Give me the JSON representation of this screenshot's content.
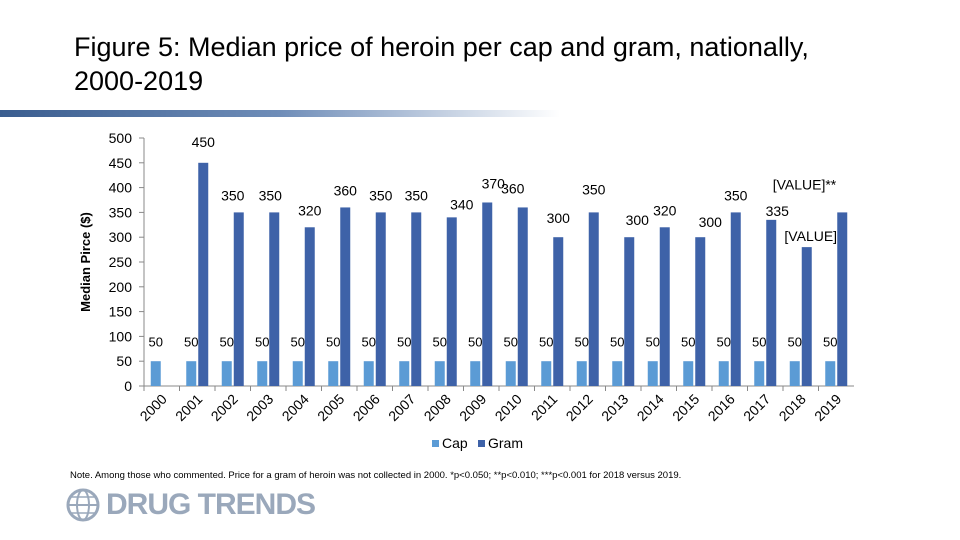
{
  "title": "Figure 5: Median price of heroin per cap and gram, nationally, 2000-2019",
  "note": "Note. Among those who commented. Price for a gram of heroin was not collected in 2000. *p<0.050; **p<0.010; ***p<0.001 for 2018 versus 2019.",
  "logo": {
    "text": "DRUG TRENDS",
    "icon": "globe-icon"
  },
  "colors": {
    "cap": "#5b9bd5",
    "gram": "#3e62a8",
    "rule": "#3a5d8f",
    "logo": "#9aa8bb"
  },
  "chart_data": {
    "type": "bar",
    "ylabel": "Median Pirce ($)",
    "ylim": [
      0,
      500
    ],
    "yticks": [
      "0",
      "50",
      "100",
      "150",
      "200",
      "250",
      "300",
      "350",
      "400",
      "450",
      "500"
    ],
    "categories": [
      "2000",
      "2001",
      "2002",
      "2003",
      "2004",
      "2005",
      "2006",
      "2007",
      "2008",
      "2009",
      "2010",
      "2011",
      "2012",
      "2013",
      "2014",
      "2015",
      "2016",
      "2017",
      "2018",
      "2019"
    ],
    "legend_position": "bottom",
    "grid": false,
    "series": [
      {
        "name": "Cap",
        "values": [
          50,
          50,
          50,
          50,
          50,
          50,
          50,
          50,
          50,
          50,
          50,
          50,
          50,
          50,
          50,
          50,
          50,
          50,
          50,
          50
        ],
        "labels": [
          "50",
          "50",
          "50",
          "50",
          "50",
          "50",
          "50",
          "50",
          "50",
          "50",
          "50",
          "50",
          "50",
          "50",
          "50",
          "50",
          "50",
          "50",
          "50",
          "50"
        ]
      },
      {
        "name": "Gram",
        "values": [
          null,
          450,
          350,
          350,
          320,
          360,
          350,
          350,
          340,
          370,
          360,
          300,
          350,
          300,
          320,
          300,
          350,
          335,
          280,
          350
        ],
        "labels": [
          "",
          "450",
          "350",
          "350",
          "320",
          "360",
          "350",
          "350",
          "340",
          "370",
          "360",
          "300",
          "350",
          "300",
          "320",
          "300",
          "350",
          "335",
          "[VALUE]",
          "[VALUE]**"
        ]
      }
    ]
  }
}
